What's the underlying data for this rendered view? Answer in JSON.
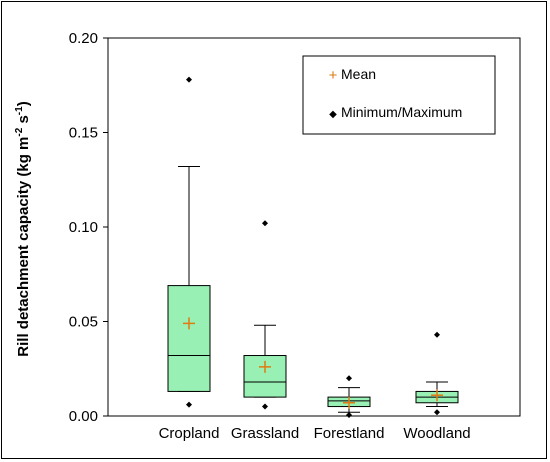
{
  "chart_data": {
    "type": "box",
    "ylabel": "Rill detachment capacity (kg m⁻² s⁻¹)",
    "ylabel_parts": {
      "main": "Rill detachment capacity (kg m",
      "exp1": "-2",
      "mid": " s",
      "exp2": "-1",
      "end": ")"
    },
    "ylim": [
      0.0,
      0.2
    ],
    "yticks": [
      0.0,
      0.05,
      0.1,
      0.15,
      0.2
    ],
    "ytick_labels": [
      "0.00",
      "0.05",
      "0.10",
      "0.15",
      "0.20"
    ],
    "categories": [
      "Cropland",
      "Grassland",
      "Forestland",
      "Woodland"
    ],
    "boxes": [
      {
        "category": "Cropland",
        "min": 0.006,
        "whisker_low": 0.013,
        "q1": 0.013,
        "median": 0.032,
        "q3": 0.069,
        "whisker_high": 0.132,
        "max": 0.178,
        "mean": 0.049
      },
      {
        "category": "Grassland",
        "min": 0.005,
        "whisker_low": 0.01,
        "q1": 0.01,
        "median": 0.018,
        "q3": 0.032,
        "whisker_high": 0.048,
        "max": 0.102,
        "mean": 0.026
      },
      {
        "category": "Forestland",
        "min": 0.0005,
        "whisker_low": 0.002,
        "q1": 0.005,
        "median": 0.008,
        "q3": 0.01,
        "whisker_high": 0.015,
        "max": 0.02,
        "mean": 0.007
      },
      {
        "category": "Woodland",
        "min": 0.002,
        "whisker_low": 0.005,
        "q1": 0.007,
        "median": 0.01,
        "q3": 0.013,
        "whisker_high": 0.018,
        "max": 0.043,
        "mean": 0.011
      }
    ],
    "legend": {
      "position": "top-right",
      "entries": [
        {
          "symbol": "+",
          "label": "Mean"
        },
        {
          "symbol": "◆",
          "label": "Minimum/Maximum"
        }
      ]
    },
    "colors": {
      "box_fill": "#98f0b4",
      "mean_marker": "#e07a10",
      "extremes": "#000000"
    },
    "grid": false
  }
}
